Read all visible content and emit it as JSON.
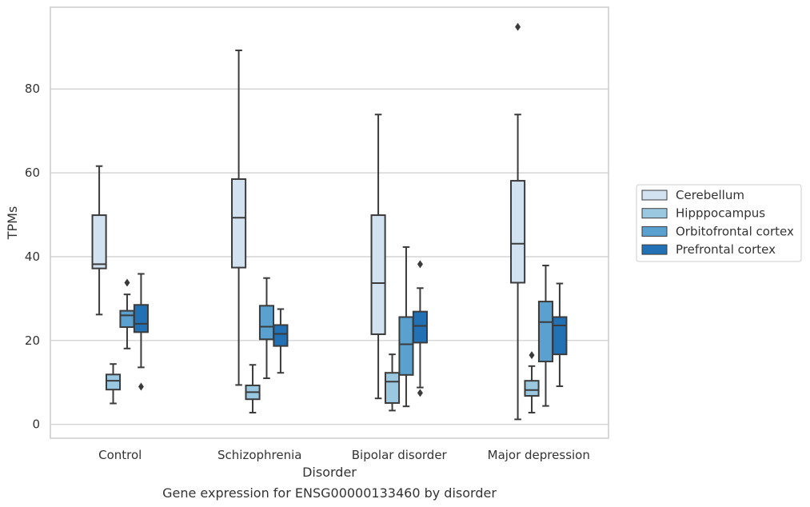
{
  "chart_data": {
    "type": "box",
    "title": "",
    "caption": "Gene expression for ENSG00000133460 by disorder",
    "xlabel": "Disorder",
    "ylabel": "TPMs",
    "ylim": [
      -3.3,
      99.5
    ],
    "yticks": [
      0,
      20,
      40,
      60,
      80
    ],
    "grid": "horizontal",
    "legend_position": "right",
    "categories": [
      "Control",
      "Schizophrenia",
      "Bipolar disorder",
      "Major depression"
    ],
    "series": [
      {
        "name": "Cerebellum",
        "color": "#d2e2f1",
        "boxes": [
          {
            "whisker_low": 26.2,
            "q1": 37.2,
            "median": 38.2,
            "q3": 49.9,
            "whisker_high": 61.6,
            "outliers": []
          },
          {
            "whisker_low": 9.4,
            "q1": 37.4,
            "median": 49.3,
            "q3": 58.5,
            "whisker_high": 89.2,
            "outliers": []
          },
          {
            "whisker_low": 6.2,
            "q1": 21.5,
            "median": 33.7,
            "q3": 49.9,
            "whisker_high": 73.9,
            "outliers": []
          },
          {
            "whisker_low": 1.2,
            "q1": 33.8,
            "median": 43.1,
            "q3": 58.1,
            "whisker_high": 73.9,
            "outliers": [
              94.8
            ]
          }
        ]
      },
      {
        "name": "Hipppocampus",
        "color": "#9ac8e0",
        "boxes": [
          {
            "whisker_low": 5.0,
            "q1": 8.3,
            "median": 10.4,
            "q3": 11.9,
            "whisker_high": 14.4,
            "outliers": []
          },
          {
            "whisker_low": 2.8,
            "q1": 6.0,
            "median": 7.7,
            "q3": 9.3,
            "whisker_high": 14.2,
            "outliers": []
          },
          {
            "whisker_low": 3.3,
            "q1": 5.1,
            "median": 10.2,
            "q3": 12.3,
            "whisker_high": 16.7,
            "outliers": []
          },
          {
            "whisker_low": 2.8,
            "q1": 6.8,
            "median": 8.2,
            "q3": 10.4,
            "whisker_high": 13.9,
            "outliers": [
              16.5
            ]
          }
        ]
      },
      {
        "name": "Orbitofrontal cortex",
        "color": "#5aa1cf",
        "boxes": [
          {
            "whisker_low": 18.1,
            "q1": 23.2,
            "median": 26.0,
            "q3": 27.1,
            "whisker_high": 31.0,
            "outliers": [
              33.8
            ]
          },
          {
            "whisker_low": 11.0,
            "q1": 20.3,
            "median": 23.3,
            "q3": 28.3,
            "whisker_high": 34.9,
            "outliers": []
          },
          {
            "whisker_low": 4.3,
            "q1": 11.8,
            "median": 19.1,
            "q3": 25.6,
            "whisker_high": 42.3,
            "outliers": []
          },
          {
            "whisker_low": 4.4,
            "q1": 15.0,
            "median": 24.4,
            "q3": 29.3,
            "whisker_high": 37.9,
            "outliers": []
          }
        ]
      },
      {
        "name": "Prefrontal cortex",
        "color": "#2271b5",
        "boxes": [
          {
            "whisker_low": 13.6,
            "q1": 22.0,
            "median": 24.0,
            "q3": 28.5,
            "whisker_high": 35.9,
            "outliers": [
              9.0
            ]
          },
          {
            "whisker_low": 12.3,
            "q1": 18.7,
            "median": 21.6,
            "q3": 23.7,
            "whisker_high": 27.5,
            "outliers": []
          },
          {
            "whisker_low": 8.8,
            "q1": 19.5,
            "median": 23.5,
            "q3": 26.9,
            "whisker_high": 32.5,
            "outliers": [
              7.5,
              38.2
            ]
          },
          {
            "whisker_low": 9.1,
            "q1": 16.7,
            "median": 23.6,
            "q3": 25.6,
            "whisker_high": 33.6,
            "outliers": []
          }
        ]
      }
    ]
  }
}
